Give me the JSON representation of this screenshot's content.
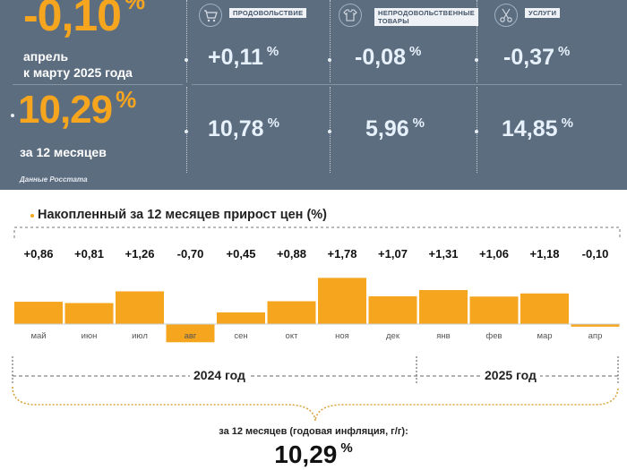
{
  "summary": {
    "monthly": {
      "value": "-0,10",
      "unit": "%",
      "label_line1": "апрель",
      "label_line2": "к марту 2025 года"
    },
    "annual": {
      "value": "10,29",
      "unit": "%",
      "label": "за 12 месяцев"
    },
    "source": "Данные Росстата",
    "categories": [
      {
        "name_line1": "ПРОДОВОЛЬСТВИЕ",
        "name_line2": "",
        "icon": "shopping-cart-icon",
        "monthly": "+0,11",
        "annual": "10,78",
        "unit": "%"
      },
      {
        "name_line1": "НЕПРОДОВОЛЬСТВЕННЫЕ",
        "name_line2": "ТОВАРЫ",
        "icon": "clothing-icon",
        "monthly": "-0,08",
        "annual": "5,96",
        "unit": "%"
      },
      {
        "name_line1": "УСЛУГИ",
        "name_line2": "",
        "icon": "scissors-icon",
        "monthly": "-0,37",
        "annual": "14,85",
        "unit": "%"
      }
    ]
  },
  "chart_data": {
    "type": "bar",
    "title": "Накопленный за 12 месяцев прирост цен (%)",
    "categories": [
      "май",
      "июн",
      "июл",
      "авг",
      "сен",
      "окт",
      "ноя",
      "дек",
      "янв",
      "фев",
      "мар",
      "апр"
    ],
    "values": [
      0.86,
      0.81,
      1.26,
      -0.7,
      0.45,
      0.88,
      1.78,
      1.07,
      1.31,
      1.06,
      1.18,
      -0.1
    ],
    "value_labels": [
      "+0,86",
      "+0,81",
      "+1,26",
      "-0,70",
      "+0,45",
      "+0,88",
      "+1,78",
      "+1,07",
      "+1,31",
      "+1,06",
      "+1,18",
      "-0,10"
    ],
    "year_groups": [
      {
        "label": "2024 год",
        "from": 0,
        "to": 7
      },
      {
        "label": "2025 год",
        "from": 8,
        "to": 11
      }
    ],
    "bar_color": "#f6a51f",
    "grid": false,
    "annual_caption": "за 12 месяцев (годовая инфляция, г/г):",
    "annual_value": "10,29",
    "annual_unit": "%"
  },
  "colors": {
    "panel": "#5d6d80",
    "accent": "#f6a51f",
    "text_light": "#e6f1fb"
  }
}
